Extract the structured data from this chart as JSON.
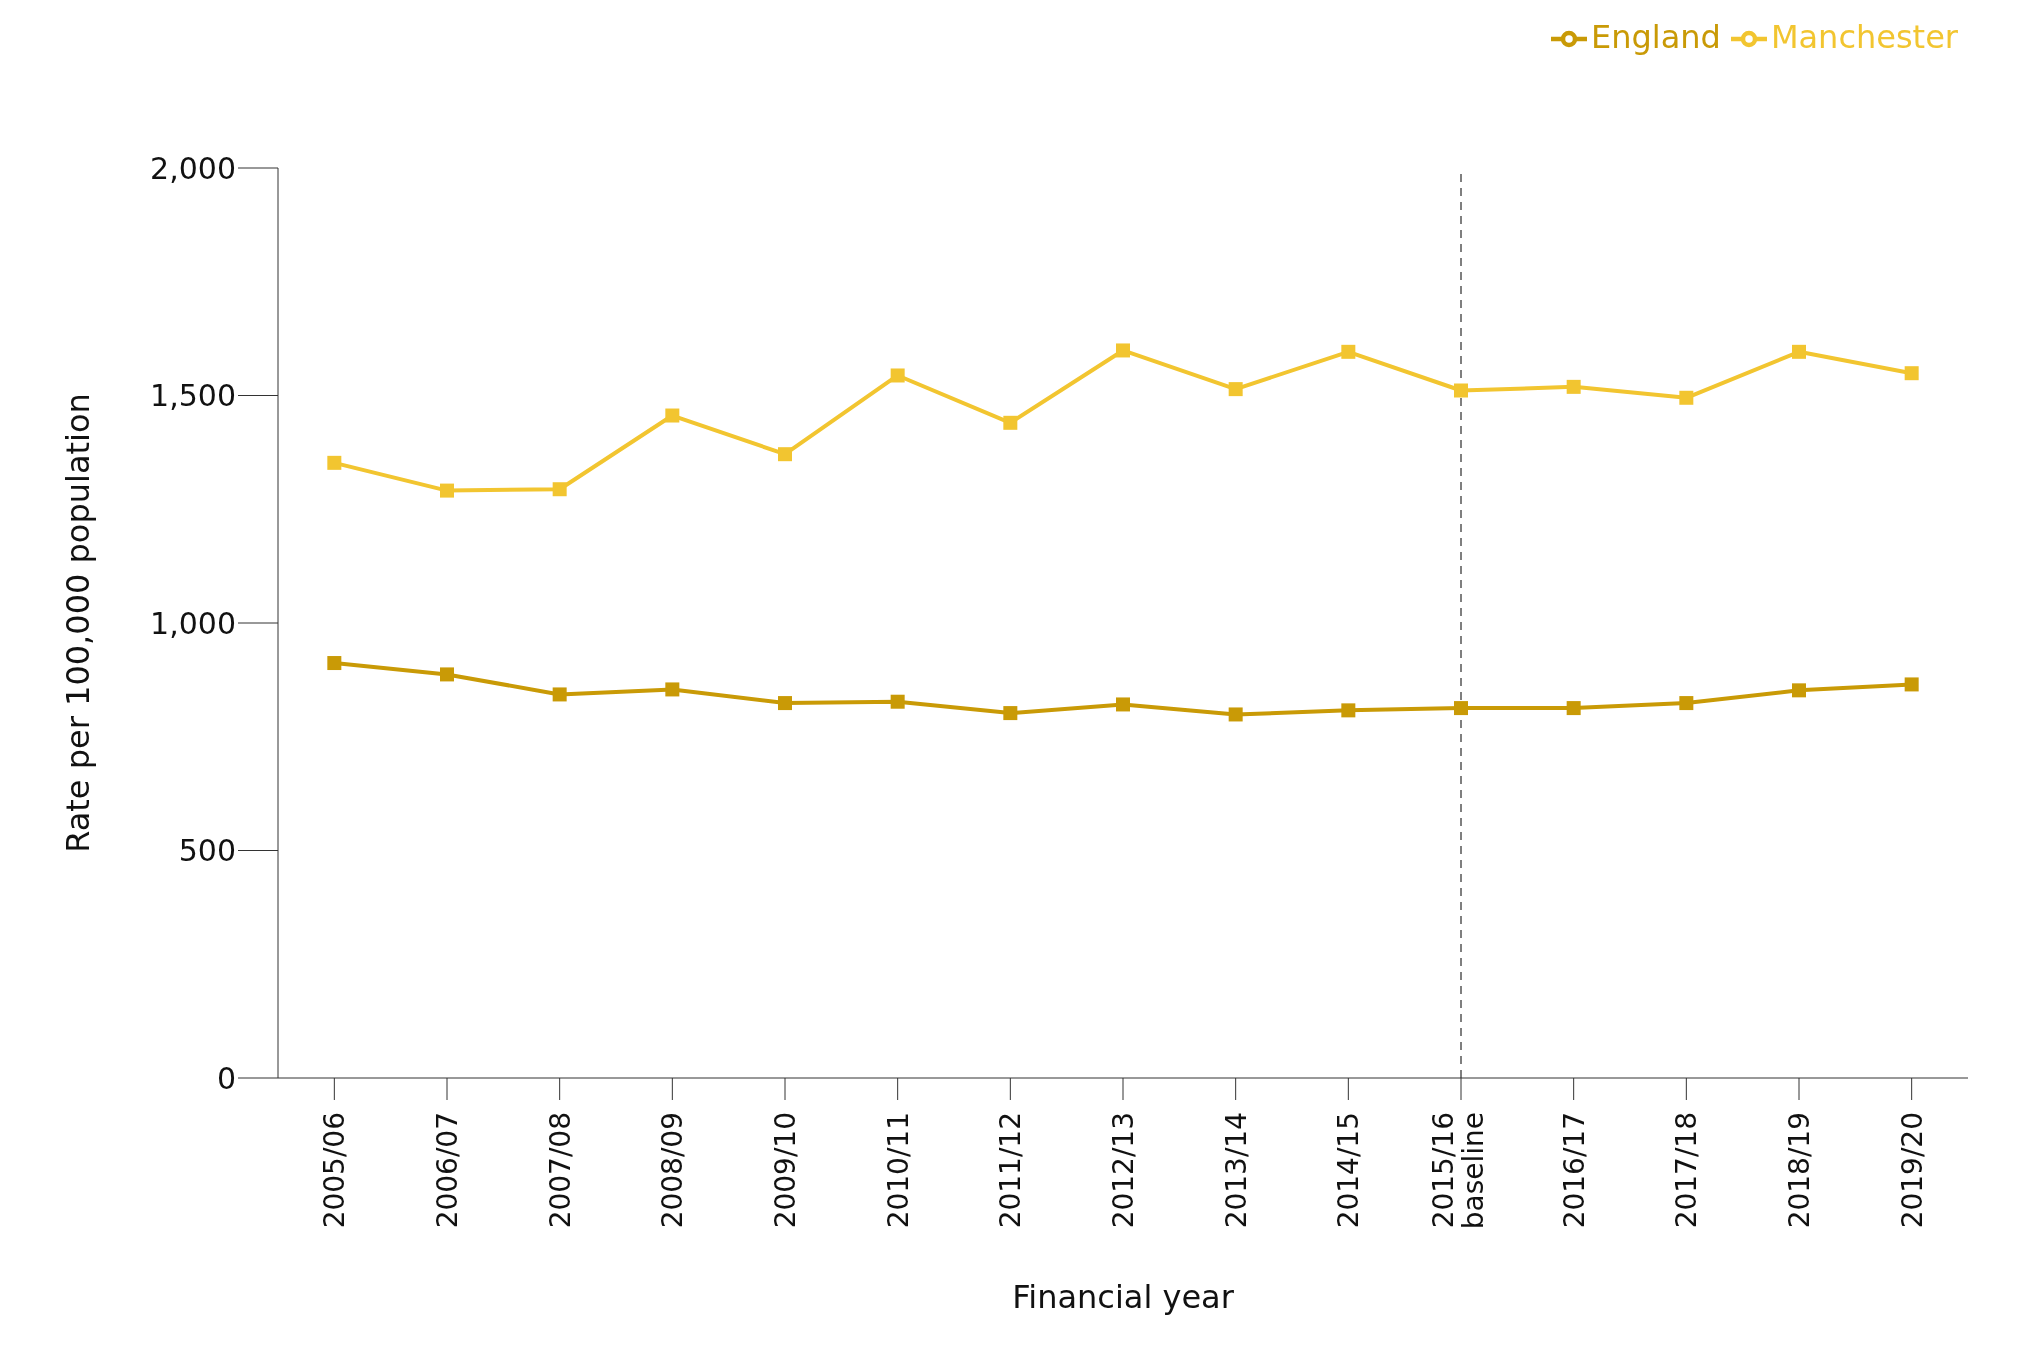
{
  "chart_data": {
    "type": "line",
    "xlabel": "Financial year",
    "ylabel": "Rate per 100,000 population",
    "categories": [
      "2005/06",
      "2006/07",
      "2007/08",
      "2008/09",
      "2009/10",
      "2010/11",
      "2011/12",
      "2012/13",
      "2013/14",
      "2014/15",
      "2015/16\nbaseline",
      "2016/17",
      "2017/18",
      "2018/19",
      "2019/20"
    ],
    "series": [
      {
        "name": "England",
        "color": "#c99a06",
        "values": [
          912,
          887,
          843,
          854,
          824,
          827,
          802,
          821,
          799,
          808,
          813,
          813,
          824,
          852,
          865
        ]
      },
      {
        "name": "Manchester",
        "color": "#f2c530",
        "values": [
          1352,
          1291,
          1294,
          1456,
          1371,
          1544,
          1440,
          1599,
          1514,
          1596,
          1511,
          1519,
          1495,
          1596,
          1549
        ]
      }
    ],
    "ylim": [
      0,
      2000
    ],
    "yticks": [
      {
        "value": 0,
        "label": "0"
      },
      {
        "value": 500,
        "label": "500"
      },
      {
        "value": 1000,
        "label": "1,000"
      },
      {
        "value": 1500,
        "label": "1,500"
      },
      {
        "value": 2000,
        "label": "2,000"
      }
    ],
    "ref_lines": [
      {
        "axis": "x",
        "value": "2015/16\nbaseline",
        "color": "#555555",
        "line_style": "dashed"
      }
    ],
    "legend": "top right",
    "marker": "square",
    "line_style": "solid",
    "grid": false
  }
}
